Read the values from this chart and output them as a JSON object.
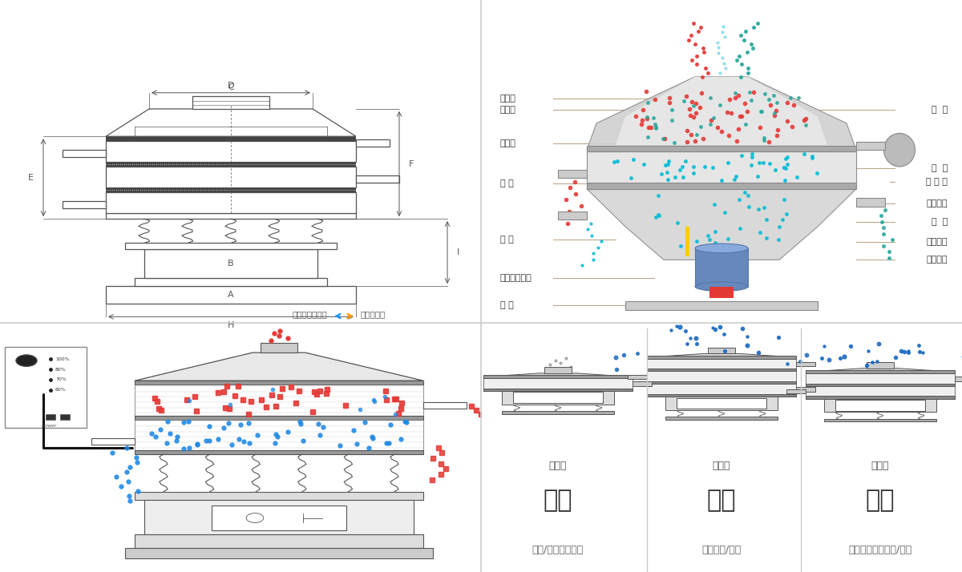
{
  "bg_color": "#ffffff",
  "red_color": "#e53935",
  "blue_color": "#1e88e5",
  "green_color": "#26a69a",
  "teal_color": "#00bcd4",
  "brown_color": "#8d6e63",
  "line_color": "#b8a080",
  "diagram_line_color": "#555555",
  "gray_light": "#dddddd",
  "gray_mid": "#bbbbbb",
  "gray_dark": "#999999",
  "left_labels": [
    "进料口",
    "防尘盖",
    "出料口",
    "束 环",
    "弹 簧",
    "运输固定螺栓",
    "机 座"
  ],
  "right_labels": [
    "筛  网",
    "网  架",
    "加 重 块",
    "上部重锤",
    "筛  盘",
    "振动电机",
    "下部重锤"
  ],
  "bottom_titles": [
    "分级",
    "过滤",
    "除杂"
  ],
  "bottom_subtitles": [
    "颗粒/粉末准确分级",
    "去除异物/结块",
    "去除液体中的颗粒/异物"
  ],
  "bottom_labels": [
    "单层式",
    "三层式",
    "双层式"
  ],
  "nav_label_left": "外形尺寸示意图",
  "nav_label_right": "结构示意图"
}
